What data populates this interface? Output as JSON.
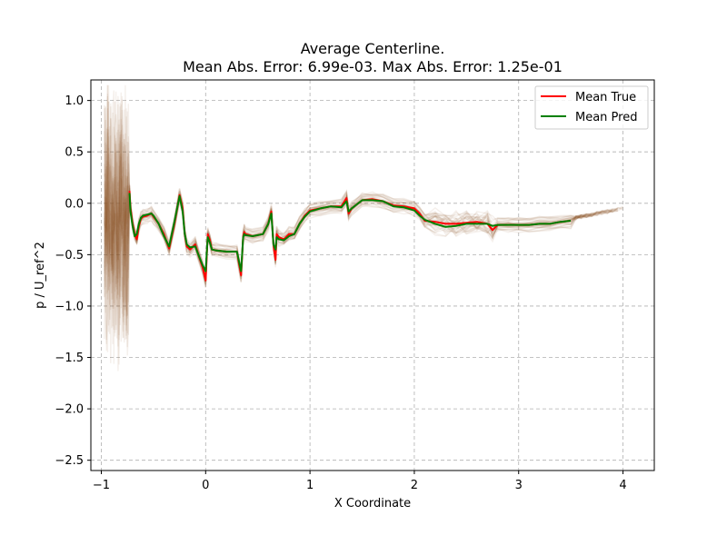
{
  "chart_data": {
    "type": "line",
    "title": "Average Centerline.",
    "subtitle": "Mean Abs. Error: 6.99e-03. Max Abs. Error: 1.25e-01",
    "xlabel": "X Coordinate",
    "ylabel": "p / U_ref^2",
    "xlim": [
      -1.1,
      4.3
    ],
    "ylim": [
      -2.6,
      1.2
    ],
    "grid": true,
    "legend_position": "top-right",
    "x_ticks": [
      -1,
      0,
      1,
      2,
      3,
      4
    ],
    "x_tick_labels": [
      "−1",
      "0",
      "1",
      "2",
      "3",
      "4"
    ],
    "y_ticks": [
      1.0,
      0.5,
      0.0,
      -0.5,
      -1.0,
      -1.5,
      -2.0,
      -2.5
    ],
    "y_tick_labels": [
      "1.0",
      "0.5",
      "0.0",
      "−0.5",
      "−1.0",
      "−1.5",
      "−2.0",
      "−2.5"
    ],
    "colors": {
      "true": "#ff0000",
      "pred": "#008000",
      "samples": "#8b5a2b",
      "grid": "#b0b0b0"
    },
    "series": [
      {
        "name": "Mean True",
        "x": [
          -0.73,
          -0.72,
          -0.7,
          -0.68,
          -0.66,
          -0.64,
          -0.62,
          -0.6,
          -0.56,
          -0.52,
          -0.5,
          -0.45,
          -0.4,
          -0.35,
          -0.3,
          -0.25,
          -0.22,
          -0.2,
          -0.18,
          -0.15,
          -0.1,
          -0.07,
          -0.03,
          0.0,
          0.02,
          0.04,
          0.06,
          0.1,
          0.2,
          0.3,
          0.34,
          0.36,
          0.37,
          0.38,
          0.45,
          0.55,
          0.6,
          0.63,
          0.65,
          0.67,
          0.68,
          0.7,
          0.75,
          0.8,
          0.85,
          0.9,
          0.95,
          1.0,
          1.1,
          1.2,
          1.3,
          1.35,
          1.37,
          1.4,
          1.5,
          1.6,
          1.7,
          1.8,
          1.9,
          2.0,
          2.05,
          2.1,
          2.2,
          2.3,
          2.4,
          2.5,
          2.6,
          2.7,
          2.75,
          2.8,
          2.9,
          3.0,
          3.1,
          3.2,
          3.3,
          3.4,
          3.5
        ],
        "y": [
          0.12,
          -0.05,
          -0.2,
          -0.3,
          -0.35,
          -0.22,
          -0.15,
          -0.13,
          -0.12,
          -0.1,
          -0.13,
          -0.2,
          -0.3,
          -0.44,
          -0.2,
          0.08,
          -0.05,
          -0.3,
          -0.42,
          -0.45,
          -0.4,
          -0.5,
          -0.62,
          -0.75,
          -0.3,
          -0.36,
          -0.45,
          -0.46,
          -0.47,
          -0.47,
          -0.7,
          -0.32,
          -0.28,
          -0.3,
          -0.32,
          -0.3,
          -0.2,
          -0.08,
          -0.4,
          -0.55,
          -0.3,
          -0.33,
          -0.35,
          -0.3,
          -0.3,
          -0.2,
          -0.12,
          -0.07,
          -0.05,
          -0.03,
          -0.03,
          0.05,
          -0.1,
          -0.05,
          0.03,
          0.04,
          0.02,
          -0.02,
          -0.03,
          -0.05,
          -0.1,
          -0.17,
          -0.18,
          -0.2,
          -0.2,
          -0.19,
          -0.18,
          -0.2,
          -0.26,
          -0.21,
          -0.21,
          -0.21,
          -0.21,
          -0.2,
          -0.2,
          -0.18,
          -0.17
        ]
      },
      {
        "name": "Mean Pred",
        "x": [
          -0.73,
          -0.72,
          -0.7,
          -0.68,
          -0.66,
          -0.64,
          -0.62,
          -0.6,
          -0.56,
          -0.52,
          -0.5,
          -0.45,
          -0.4,
          -0.35,
          -0.3,
          -0.25,
          -0.22,
          -0.2,
          -0.18,
          -0.15,
          -0.1,
          -0.07,
          -0.03,
          0.0,
          0.02,
          0.04,
          0.06,
          0.1,
          0.2,
          0.3,
          0.34,
          0.36,
          0.37,
          0.38,
          0.45,
          0.55,
          0.6,
          0.63,
          0.65,
          0.67,
          0.68,
          0.7,
          0.75,
          0.8,
          0.85,
          0.9,
          0.95,
          1.0,
          1.1,
          1.2,
          1.3,
          1.35,
          1.37,
          1.4,
          1.5,
          1.6,
          1.7,
          1.8,
          1.9,
          2.0,
          2.05,
          2.1,
          2.2,
          2.3,
          2.4,
          2.5,
          2.6,
          2.7,
          2.75,
          2.8,
          2.9,
          3.0,
          3.1,
          3.2,
          3.3,
          3.4,
          3.5
        ],
        "y": [
          0.1,
          -0.08,
          -0.22,
          -0.32,
          -0.3,
          -0.2,
          -0.14,
          -0.12,
          -0.11,
          -0.1,
          -0.12,
          -0.2,
          -0.32,
          -0.42,
          -0.18,
          0.07,
          -0.08,
          -0.3,
          -0.4,
          -0.43,
          -0.42,
          -0.5,
          -0.6,
          -0.66,
          -0.33,
          -0.38,
          -0.45,
          -0.46,
          -0.47,
          -0.47,
          -0.66,
          -0.33,
          -0.3,
          -0.31,
          -0.32,
          -0.3,
          -0.2,
          -0.1,
          -0.4,
          -0.45,
          -0.33,
          -0.35,
          -0.36,
          -0.32,
          -0.3,
          -0.2,
          -0.13,
          -0.08,
          -0.05,
          -0.03,
          -0.04,
          0.02,
          -0.08,
          -0.05,
          0.03,
          0.03,
          0.02,
          -0.03,
          -0.04,
          -0.07,
          -0.12,
          -0.16,
          -0.2,
          -0.23,
          -0.22,
          -0.2,
          -0.2,
          -0.2,
          -0.22,
          -0.21,
          -0.21,
          -0.21,
          -0.21,
          -0.2,
          -0.2,
          -0.18,
          -0.17
        ]
      }
    ]
  }
}
